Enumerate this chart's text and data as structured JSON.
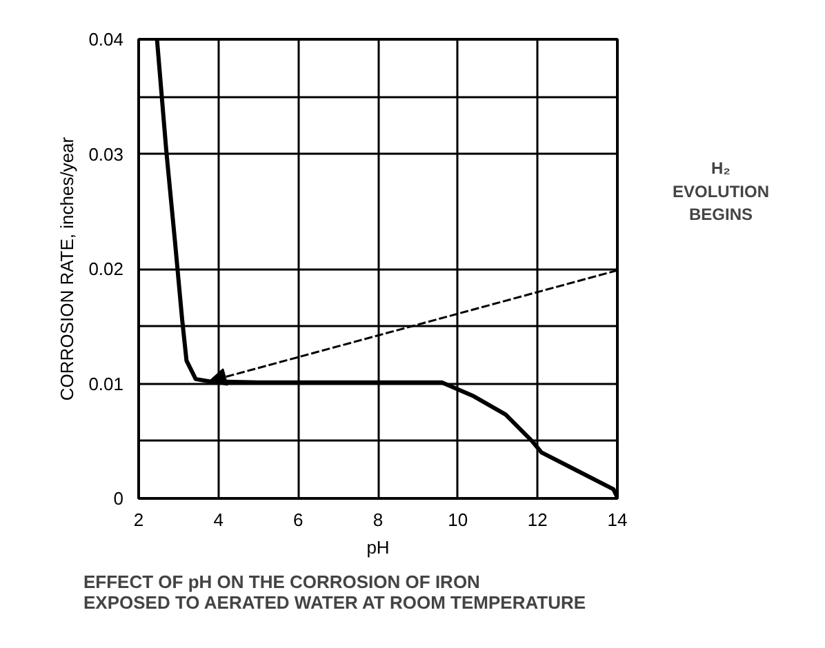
{
  "chart_data": {
    "type": "line",
    "xlabel": "pH",
    "ylabel": "CORROSION RATE, inches/year",
    "x": [
      2.46,
      2.69,
      2.91,
      3.09,
      3.2,
      3.43,
      3.77,
      5,
      7,
      9,
      9.6,
      10.4,
      11.2,
      11.86,
      12.1,
      13.0,
      13.9,
      14
    ],
    "series": [
      {
        "color": "#000000",
        "values": [
          0.04,
          0.0304,
          0.0224,
          0.0156,
          0.012,
          0.0104,
          0.0102,
          0.0101,
          0.0101,
          0.0101,
          0.0101,
          0.0089,
          0.0073,
          0.005,
          0.004,
          0.0024,
          0.0008,
          0.0001
        ]
      }
    ],
    "xlim": [
      2,
      14
    ],
    "ylim": [
      0,
      0.04
    ],
    "xticks": [
      2,
      4,
      6,
      8,
      10,
      12,
      14
    ],
    "yticks": [
      0,
      {
        "value": 0.005,
        "label": null
      },
      0.01,
      {
        "value": 0.015,
        "label": null
      },
      0.02,
      0.03,
      {
        "value": 0.035,
        "label": null
      },
      0.04
    ],
    "grid": true,
    "marker": "none",
    "line_style": "solid",
    "annotations": [
      "H₂\nEVOLUTION\nBEGINS",
      "EFFECT OF pH ON THE CORROSION OF IRON\nEXPOSED TO AERATED WATER AT ROOM TEMPERATURE"
    ]
  }
}
